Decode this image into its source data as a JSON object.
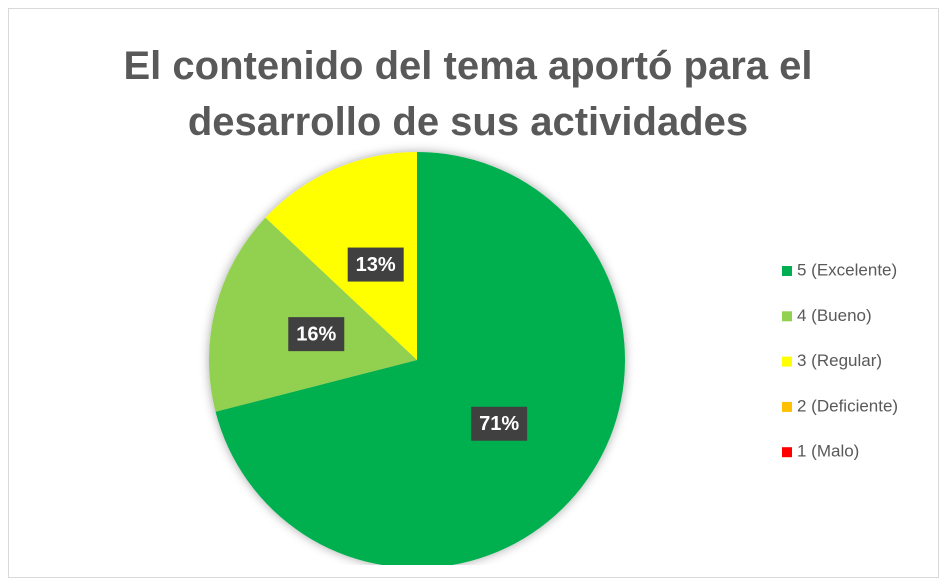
{
  "chart_data": {
    "type": "pie",
    "title": "El contenido del tema aportó para el desarrollo de sus actividades",
    "categories": [
      "5 (Excelente)",
      "4 (Bueno)",
      "3 (Regular)",
      "2 (Deficiente)",
      "1 (Malo)"
    ],
    "values": [
      71,
      16,
      13,
      0,
      0
    ],
    "value_labels": [
      "71%",
      "16%",
      "13%",
      null,
      null
    ],
    "colors": [
      "#00b050",
      "#92d050",
      "#ffff00",
      "#ffc000",
      "#ff0000"
    ],
    "legend": "right"
  }
}
